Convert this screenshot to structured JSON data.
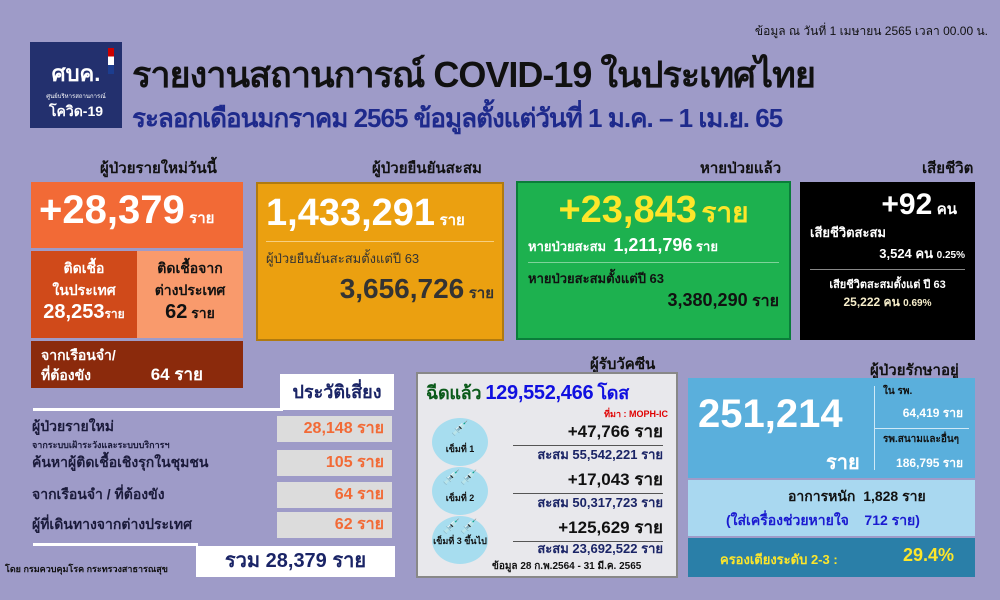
{
  "header": {
    "date": "ข้อมูล ณ วันที่ 1 เมษายน 2565 เวลา 00.00 น.",
    "title": "รายงานสถานการณ์ COVID-19 ในประเทศไทย",
    "subtitle": "ระลอกเดือนมกราคม 2565 ข้อมูลตั้งแต่วันที่ 1 ม.ค. – 1 เม.ย. 65",
    "logo": {
      "line1": "ศบค.",
      "line2": "ศูนย์บริหารสถานการณ์",
      "line3": "โควิด-19"
    }
  },
  "unit": "ราย",
  "unit_person": "คน",
  "new_cases": {
    "heading": "ผู้ป่วยรายใหม่วันนี้",
    "total": "+28,379",
    "domestic_label1": "ติดเชื้อ",
    "domestic_label2": "ในประเทศ",
    "domestic": "28,253",
    "abroad_label1": "ติดเชื้อจาก",
    "abroad_label2": "ต่างประเทศ",
    "abroad": "62",
    "prison_label1": "จากเรือนจำ/",
    "prison_label2": "ที่ต้องขัง",
    "prison": "64"
  },
  "cumulative": {
    "heading": "ผู้ป่วยยืนยันสะสม",
    "value": "1,433,291",
    "since_label": "ผู้ป่วยยืนยันสะสมตั้งแต่ปี 63",
    "since_value": "3,656,726"
  },
  "recovered": {
    "heading": "หายป่วยแล้ว",
    "today": "+23,843",
    "cum_label": "หายป่วยสะสม",
    "cum": "1,211,796",
    "since_label": "หายป่วยสะสมตั้งแต่ปี 63",
    "since_value": "3,380,290"
  },
  "deaths": {
    "heading": "เสียชีวิต",
    "today": "+92",
    "cum_label": "เสียชีวิตสะสม",
    "cum": "3,524",
    "cum_pct": "0.25%",
    "since_label": "เสียชีวิตสะสมตั้งแต่ ปี 63",
    "since_value": "25,222",
    "since_pct": "0.69%"
  },
  "risk": {
    "heading": "ประวัติเสี่ยง",
    "rows": [
      {
        "label": "ผู้ป่วยรายใหม่",
        "sub": "จากระบบเฝ้าระวังและระบบบริการฯ",
        "value": "28,148 ราย"
      },
      {
        "label": "ค้นหาผู้ติดเชื้อเชิงรุกในชุมชน",
        "sub": "",
        "value": "105 ราย"
      },
      {
        "label": "จากเรือนจำ / ที่ต้องขัง",
        "sub": "",
        "value": "64 ราย"
      },
      {
        "label": "ผู้ที่เดินทางจากต่างประเทศ",
        "sub": "",
        "value": "62 ราย"
      }
    ],
    "total": "รวม 28,379 ราย"
  },
  "footer": "โดย กรมควบคุมโรค กระทรวงสาธารณสุข",
  "vaccine": {
    "heading": "ผู้รับวัคซีน",
    "given_label": "ฉีดแล้ว",
    "given": "129,552,466",
    "dose_unit": "โดส",
    "source": "ที่มา : MOPH-IC",
    "cum_label": "สะสม",
    "doses": [
      {
        "label": "เข็มที่ 1",
        "new": "+47,766",
        "cum": "55,542,221"
      },
      {
        "label": "เข็มที่ 2",
        "new": "+17,043",
        "cum": "50,317,723"
      },
      {
        "label": "เข็มที่ 3 ขึ้นไป",
        "new": "+125,629",
        "cum": "23,692,522"
      }
    ],
    "period": "ข้อมูล 28 ก.พ.2564 - 31 มี.ค. 2565"
  },
  "treatment": {
    "heading": "ผู้ป่วยรักษาอยู่",
    "total": "251,214",
    "hosp_label": "ใน รพ.",
    "hosp": "64,419",
    "field_label": "รพ.สนามและอื่นๆ",
    "field": "186,795",
    "severe_label": "อาการหนัก",
    "severe": "1,828",
    "vent_label": "(ใส่เครื่องช่วยหายใจ",
    "vent": "712 ราย)",
    "bed_label": "ครองเตียงระดับ 2-3 :",
    "bed": "29.4%"
  },
  "colors": {
    "background": "#9e9bc8",
    "new": "#f26a36",
    "cumulative": "#eba010",
    "recovered": "#1db14f",
    "death": "#000000",
    "treatment": "#5aafdc"
  }
}
